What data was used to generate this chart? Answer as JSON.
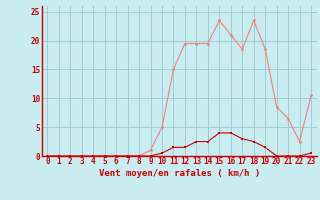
{
  "x": [
    0,
    1,
    2,
    3,
    4,
    5,
    6,
    7,
    8,
    9,
    10,
    11,
    12,
    13,
    14,
    15,
    16,
    17,
    18,
    19,
    20,
    21,
    22,
    23
  ],
  "rafales": [
    0,
    0,
    0,
    0,
    0,
    0,
    0,
    0,
    0,
    1,
    5,
    15,
    19.5,
    19.5,
    19.5,
    23.5,
    21,
    18.5,
    23.5,
    18.5,
    8.5,
    6.5,
    2.5,
    10.5
  ],
  "moyen": [
    0,
    0,
    0,
    0,
    0,
    0,
    0,
    0,
    0,
    0,
    0.5,
    1.5,
    1.5,
    2.5,
    2.5,
    4,
    4,
    3,
    2.5,
    1.5,
    0,
    0,
    0,
    0.5
  ],
  "color_rafales": "#F08080",
  "color_moyen": "#CC0000",
  "bg_color": "#C8ECF0",
  "grid_color": "#98C8CC",
  "xlabel": "Vent moyen/en rafales ( km/h )",
  "ylim": [
    0,
    26
  ],
  "xlim": [
    -0.5,
    23.5
  ],
  "yticks": [
    0,
    5,
    10,
    15,
    20,
    25
  ],
  "xticks": [
    0,
    1,
    2,
    3,
    4,
    5,
    6,
    7,
    8,
    9,
    10,
    11,
    12,
    13,
    14,
    15,
    16,
    17,
    18,
    19,
    20,
    21,
    22,
    23
  ],
  "tick_fontsize": 5.5,
  "xlabel_fontsize": 6.5
}
